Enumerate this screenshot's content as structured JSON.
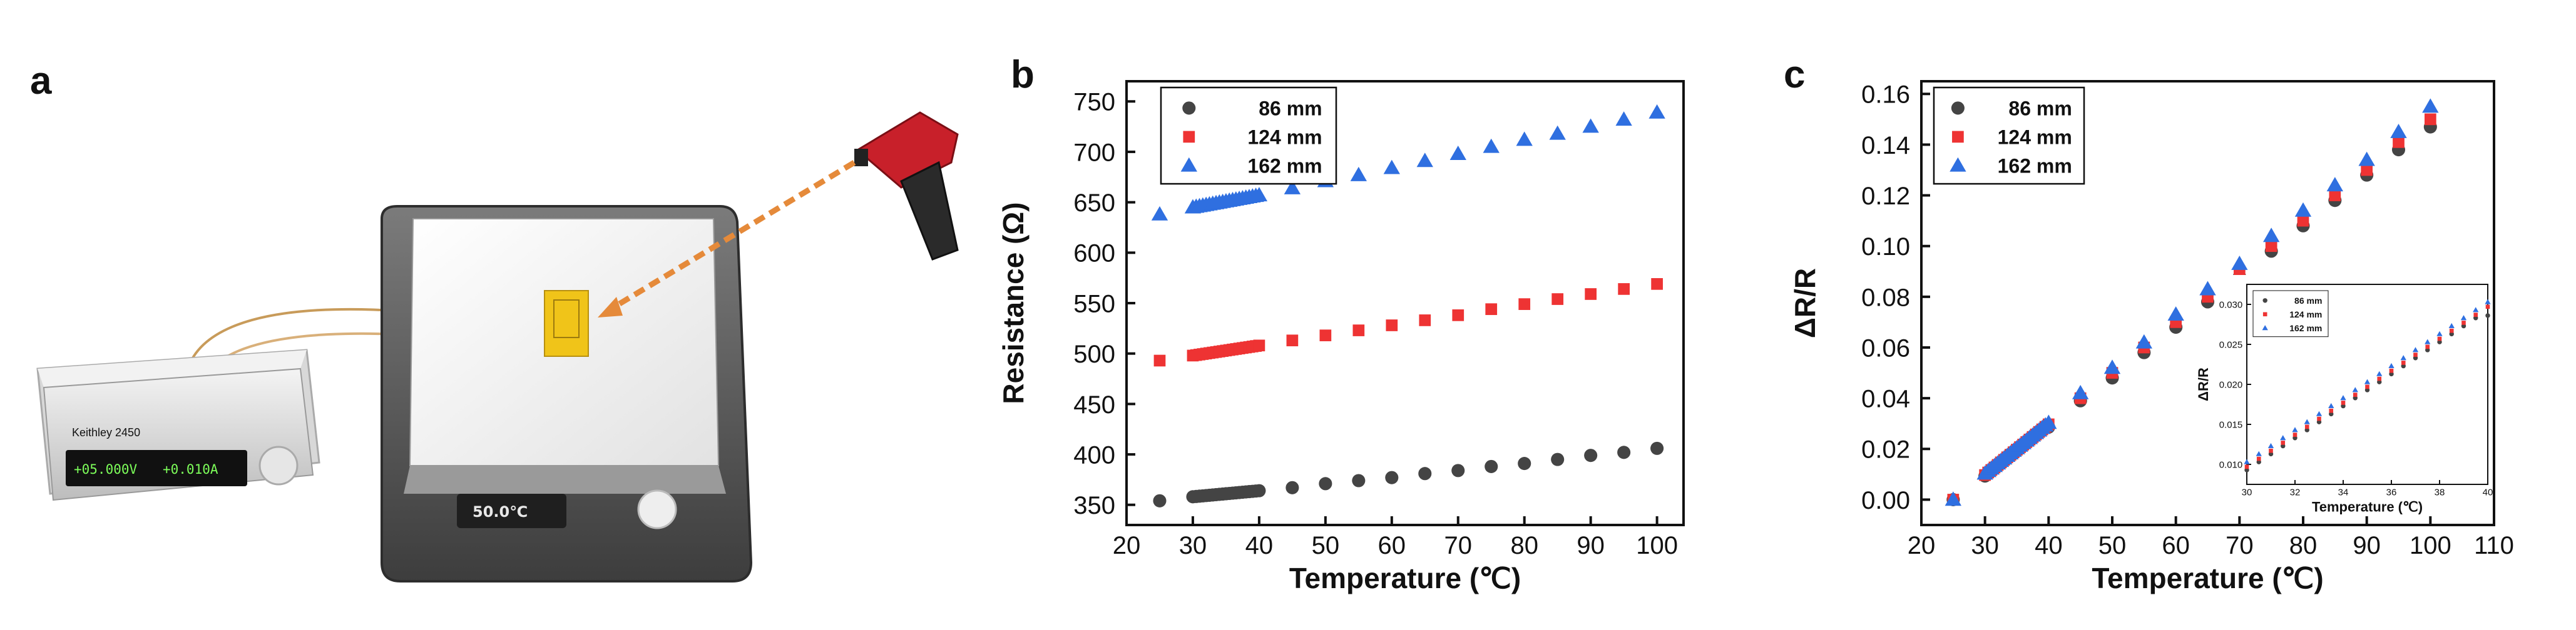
{
  "panel_labels": {
    "a": "a",
    "b": "b",
    "c": "c"
  },
  "panel_a": {
    "meter_brand": "Keithley 2450",
    "meter_readout_v": "+05.000V",
    "meter_readout_a": "+0.010A",
    "hotplate_readout": "50.0℃"
  },
  "colors": {
    "series_86": "#444444",
    "series_124": "#ee3333",
    "series_162": "#2f6fe0",
    "display_text": "#7dff5a"
  },
  "chart_data": [
    {
      "id": "b",
      "type": "scatter",
      "title": "",
      "xlabel": "Temperature (℃)",
      "ylabel": "Resistance (Ω)",
      "xlim": [
        20,
        104
      ],
      "ylim": [
        330,
        770
      ],
      "xticks": [
        20,
        30,
        40,
        50,
        60,
        70,
        80,
        90,
        100
      ],
      "yticks": [
        350,
        400,
        450,
        500,
        550,
        600,
        650,
        700,
        750
      ],
      "legend_position": "top-left",
      "series": [
        {
          "name": "86 mm",
          "marker": "circle",
          "x": [
            25,
            30,
            30.5,
            31,
            31.5,
            32,
            32.5,
            33,
            33.5,
            34,
            34.5,
            35,
            35.5,
            36,
            36.5,
            37,
            37.5,
            38,
            38.5,
            39,
            39.5,
            40,
            45,
            50,
            55,
            60,
            65,
            70,
            75,
            80,
            85,
            90,
            95,
            100
          ],
          "y": [
            354,
            358,
            358.3,
            358.6,
            358.9,
            359.2,
            359.5,
            359.8,
            360.1,
            360.4,
            360.7,
            361,
            361.3,
            361.6,
            361.9,
            362.2,
            362.5,
            362.8,
            363.1,
            363.4,
            363.7,
            364,
            367,
            371,
            374,
            377,
            381,
            384,
            388,
            391,
            395,
            399,
            402,
            406
          ]
        },
        {
          "name": "124 mm",
          "marker": "square",
          "x": [
            25,
            30,
            30.5,
            31,
            31.5,
            32,
            32.5,
            33,
            33.5,
            34,
            34.5,
            35,
            35.5,
            36,
            36.5,
            37,
            37.5,
            38,
            38.5,
            39,
            39.5,
            40,
            45,
            50,
            55,
            60,
            65,
            70,
            75,
            80,
            85,
            90,
            95,
            100
          ],
          "y": [
            493,
            498,
            498.5,
            499,
            499.5,
            500,
            500.5,
            501,
            501.5,
            502,
            502.5,
            503,
            503.5,
            504,
            504.5,
            505,
            505.5,
            506,
            506.5,
            507,
            507.5,
            508,
            513,
            518,
            523,
            528,
            533,
            538,
            544,
            549,
            554,
            559,
            564,
            569
          ]
        },
        {
          "name": "162 mm",
          "marker": "triangle",
          "x": [
            25,
            30,
            30.5,
            31,
            31.5,
            32,
            32.5,
            33,
            33.5,
            34,
            34.5,
            35,
            35.5,
            36,
            36.5,
            37,
            37.5,
            38,
            38.5,
            39,
            39.5,
            40,
            45,
            50,
            55,
            60,
            65,
            70,
            75,
            80,
            85,
            90,
            95,
            100
          ],
          "y": [
            638,
            645,
            645.6,
            646.2,
            646.8,
            647.4,
            648,
            648.6,
            649.2,
            649.8,
            650.4,
            651,
            651.6,
            652.2,
            652.8,
            653.4,
            654,
            654.6,
            655.2,
            655.8,
            656.4,
            657,
            664,
            671,
            677,
            684,
            691,
            698,
            705,
            712,
            718,
            725,
            732,
            739
          ]
        }
      ]
    },
    {
      "id": "c",
      "type": "scatter",
      "title": "",
      "xlabel": "Temperature (℃)",
      "ylabel": "ΔR/R",
      "xlim": [
        20,
        110
      ],
      "ylim": [
        -0.01,
        0.165
      ],
      "xticks": [
        20,
        30,
        40,
        50,
        60,
        70,
        80,
        90,
        100,
        110
      ],
      "yticks": [
        0.0,
        0.02,
        0.04,
        0.06,
        0.08,
        0.1,
        0.12,
        0.14,
        0.16
      ],
      "legend_position": "top-left",
      "series": [
        {
          "name": "86 mm",
          "marker": "circle",
          "x": [
            25,
            30,
            30.5,
            31,
            31.5,
            32,
            32.5,
            33,
            33.5,
            34,
            34.5,
            35,
            35.5,
            36,
            36.5,
            37,
            37.5,
            38,
            38.5,
            39,
            39.5,
            40,
            45,
            50,
            55,
            60,
            65,
            70,
            75,
            80,
            85,
            90,
            95,
            100
          ],
          "y": [
            0.0,
            0.0093,
            0.0103,
            0.0113,
            0.0123,
            0.0133,
            0.0143,
            0.0153,
            0.0163,
            0.0173,
            0.0183,
            0.0193,
            0.0203,
            0.0213,
            0.0223,
            0.0233,
            0.0243,
            0.0253,
            0.0263,
            0.0273,
            0.0283,
            0.0286,
            0.039,
            0.048,
            0.058,
            0.068,
            0.078,
            0.088,
            0.098,
            0.108,
            0.118,
            0.128,
            0.138,
            0.147
          ]
        },
        {
          "name": "124 mm",
          "marker": "square",
          "x": [
            25,
            30,
            30.5,
            31,
            31.5,
            32,
            32.5,
            33,
            33.5,
            34,
            34.5,
            35,
            35.5,
            36,
            36.5,
            37,
            37.5,
            38,
            38.5,
            39,
            39.5,
            40,
            45,
            50,
            55,
            60,
            65,
            70,
            75,
            80,
            85,
            90,
            95,
            100
          ],
          "y": [
            0.0,
            0.0097,
            0.0107,
            0.0117,
            0.0127,
            0.0137,
            0.0147,
            0.0157,
            0.0167,
            0.0177,
            0.0187,
            0.0197,
            0.0207,
            0.0217,
            0.0227,
            0.0237,
            0.0247,
            0.0257,
            0.0267,
            0.0277,
            0.0287,
            0.0297,
            0.04,
            0.05,
            0.06,
            0.07,
            0.08,
            0.09,
            0.1,
            0.11,
            0.12,
            0.13,
            0.141,
            0.15
          ]
        },
        {
          "name": "162 mm",
          "marker": "triangle",
          "x": [
            25,
            30,
            30.5,
            31,
            31.5,
            32,
            32.5,
            33,
            33.5,
            34,
            34.5,
            35,
            35.5,
            36,
            36.5,
            37,
            37.5,
            38,
            38.5,
            39,
            39.5,
            40,
            45,
            50,
            55,
            60,
            65,
            70,
            75,
            80,
            85,
            90,
            95,
            100
          ],
          "y": [
            0.0,
            0.0103,
            0.0113,
            0.0123,
            0.0133,
            0.0143,
            0.0153,
            0.0163,
            0.0173,
            0.0183,
            0.0193,
            0.0203,
            0.0213,
            0.0223,
            0.0233,
            0.0243,
            0.0253,
            0.0263,
            0.0273,
            0.0283,
            0.0293,
            0.0303,
            0.042,
            0.052,
            0.062,
            0.073,
            0.083,
            0.093,
            0.104,
            0.114,
            0.124,
            0.134,
            0.145,
            0.155
          ]
        }
      ],
      "inset": {
        "xlabel": "Temperature (℃)",
        "ylabel": "ΔR/R",
        "xlim": [
          30,
          40
        ],
        "ylim": [
          0.0075,
          0.0325
        ],
        "xticks": [
          30,
          32,
          34,
          36,
          38,
          40
        ],
        "yticks": [
          0.01,
          0.015,
          0.02,
          0.025,
          0.03
        ],
        "legend_position": "top-left"
      }
    }
  ]
}
